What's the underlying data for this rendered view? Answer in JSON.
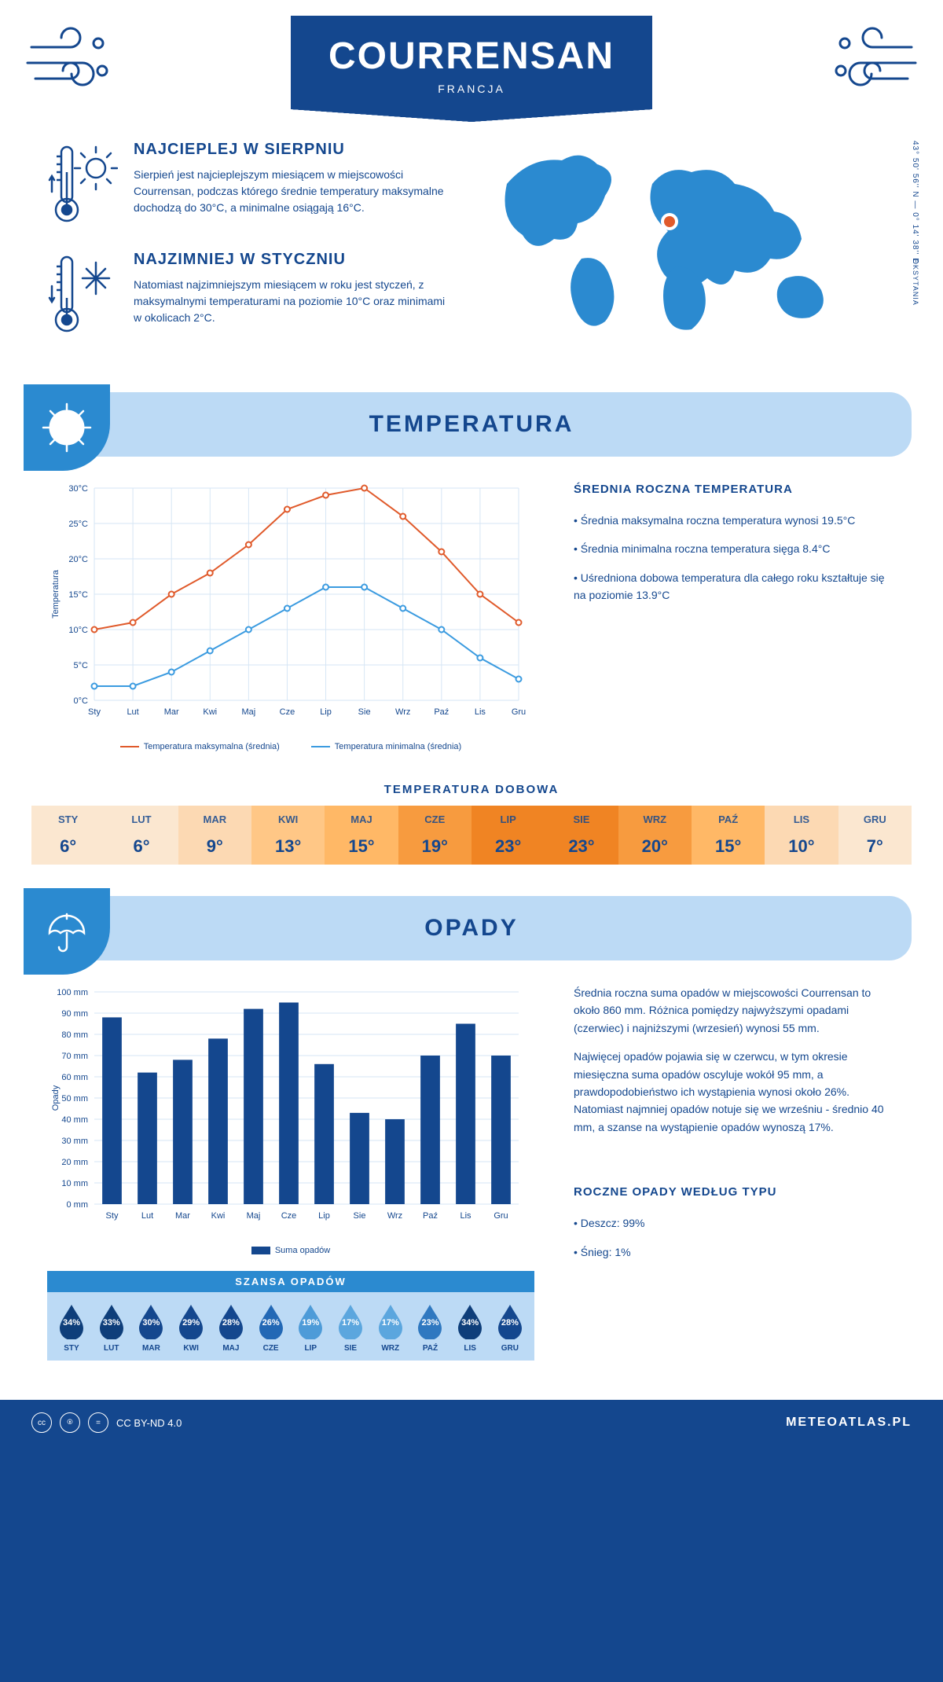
{
  "header": {
    "title": "COURRENSAN",
    "subtitle": "FRANCJA"
  },
  "coords": "43° 50' 56'' N — 0° 14' 38'' E",
  "region": "OKSYTANIA",
  "facts": {
    "warm": {
      "title": "NAJCIEPLEJ W SIERPNIU",
      "body": "Sierpień jest najcieplejszym miesiącem w miejscowości Courrensan, podczas którego średnie temperatury maksymalne dochodzą do 30°C, a minimalne osiągają 16°C."
    },
    "cold": {
      "title": "NAJZIMNIEJ W STYCZNIU",
      "body": "Natomiast najzimniejszym miesiącem w roku jest styczeń, z maksymalnymi temperaturami na poziomie 10°C oraz minimami w okolicach 2°C."
    }
  },
  "sections": {
    "temperature": "TEMPERATURA",
    "precipitation": "OPADY"
  },
  "months_short": [
    "Sty",
    "Lut",
    "Mar",
    "Kwi",
    "Maj",
    "Cze",
    "Lip",
    "Sie",
    "Wrz",
    "Paź",
    "Lis",
    "Gru"
  ],
  "months_upper": [
    "STY",
    "LUT",
    "MAR",
    "KWI",
    "MAJ",
    "CZE",
    "LIP",
    "SIE",
    "WRZ",
    "PAŹ",
    "LIS",
    "GRU"
  ],
  "temp_chart": {
    "type": "line",
    "y_label": "Temperatura",
    "ylim": [
      0,
      30
    ],
    "ytick_step": 5,
    "y_suffix": "°C",
    "grid_color": "#d6e6f5",
    "series": [
      {
        "name_key": "legend.max",
        "color": "#e05a2b",
        "values": [
          10,
          11,
          15,
          18,
          22,
          27,
          29,
          30,
          26,
          21,
          15,
          11
        ]
      },
      {
        "name_key": "legend.min",
        "color": "#3b9be0",
        "values": [
          2,
          2,
          4,
          7,
          10,
          13,
          16,
          16,
          13,
          10,
          6,
          3
        ]
      }
    ]
  },
  "legend": {
    "max": "Temperatura maksymalna (średnia)",
    "min": "Temperatura minimalna (średnia)",
    "rain": "Suma opadów"
  },
  "annual_temp": {
    "title": "ŚREDNIA ROCZNA TEMPERATURA",
    "b1": "• Średnia maksymalna roczna temperatura wynosi 19.5°C",
    "b2": "• Średnia minimalna roczna temperatura sięga 8.4°C",
    "b3": "• Uśredniona dobowa temperatura dla całego roku kształtuje się na poziomie 13.9°C"
  },
  "daily_temp": {
    "title": "TEMPERATURA DOBOWA",
    "values": [
      6,
      6,
      9,
      13,
      15,
      19,
      23,
      23,
      20,
      15,
      10,
      7
    ],
    "colors": [
      "#fbe7d0",
      "#fbe7d0",
      "#fcd9b3",
      "#ffc786",
      "#ffb866",
      "#f79b3f",
      "#f08423",
      "#f08423",
      "#f79b3f",
      "#ffb866",
      "#fcd9b3",
      "#fbe7d0"
    ]
  },
  "rain_chart": {
    "type": "bar",
    "y_label": "Opady",
    "ylim": [
      0,
      100
    ],
    "ytick_step": 10,
    "y_suffix": " mm",
    "bar_color": "#14478e",
    "values": [
      88,
      62,
      68,
      78,
      92,
      95,
      66,
      43,
      40,
      70,
      85,
      70
    ]
  },
  "rain_text": {
    "p1": "Średnia roczna suma opadów w miejscowości Courrensan to około 860 mm. Różnica pomiędzy najwyższymi opadami (czerwiec) i najniższymi (wrzesień) wynosi 55 mm.",
    "p2": "Najwięcej opadów pojawia się w czerwcu, w tym okresie miesięczna suma opadów oscyluje wokół 95 mm, a prawdopodobieństwo ich wystąpienia wynosi około 26%. Natomiast najmniej opadów notuje się we wrześniu - średnio 40 mm, a szanse na wystąpienie opadów wynoszą 17%."
  },
  "rain_chance": {
    "title": "SZANSA OPADÓW",
    "values": [
      34,
      33,
      30,
      29,
      28,
      26,
      19,
      17,
      17,
      23,
      34,
      28
    ],
    "colors": [
      "#0e3e7a",
      "#0e3e7a",
      "#14478e",
      "#14478e",
      "#14478e",
      "#2268b5",
      "#4d9bd8",
      "#5ba6de",
      "#5ba6de",
      "#2f78c0",
      "#0e3e7a",
      "#14478e"
    ]
  },
  "rain_type": {
    "title": "ROCZNE OPADY WEDŁUG TYPU",
    "b1": "• Deszcz: 99%",
    "b2": "• Śnieg: 1%"
  },
  "footer": {
    "license": "CC BY-ND 4.0",
    "site": "METEOATLAS.PL"
  }
}
